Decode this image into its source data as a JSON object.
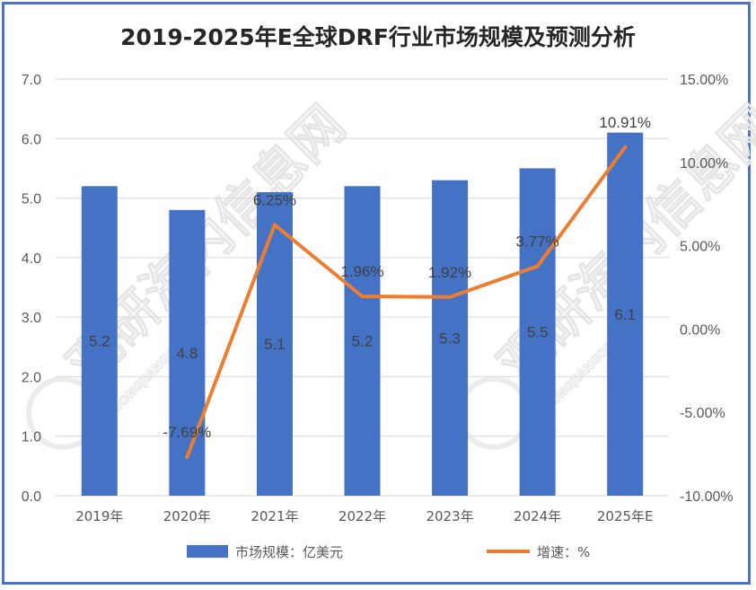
{
  "chart_data": {
    "type": "bar+line",
    "title": "2019-2025年E全球DRF行业市场规模及预测分析",
    "categories": [
      "2019年",
      "2020年",
      "2021年",
      "2022年",
      "2023年",
      "2024年",
      "2025年E"
    ],
    "series": [
      {
        "name": "市场规模：亿美元",
        "type": "bar",
        "axis": "left",
        "values": [
          5.2,
          4.8,
          5.1,
          5.2,
          5.3,
          5.5,
          6.1
        ],
        "labels": [
          "5.2",
          "4.8",
          "5.1",
          "5.2",
          "5.3",
          "5.5",
          "6.1"
        ],
        "color": "#4472c4"
      },
      {
        "name": "增速：%",
        "type": "line",
        "axis": "right",
        "values": [
          null,
          -7.69,
          6.25,
          1.96,
          1.92,
          3.77,
          10.91
        ],
        "labels": [
          null,
          "-7.69%",
          "6.25%",
          "1.96%",
          "1.92%",
          "3.77%",
          "10.91%"
        ],
        "color": "#ed7d31"
      }
    ],
    "y_left": {
      "ylim": [
        0,
        7
      ],
      "ticks": [
        "0.0",
        "1.0",
        "2.0",
        "3.0",
        "4.0",
        "5.0",
        "6.0",
        "7.0"
      ]
    },
    "y_right": {
      "ylim": [
        -10,
        15
      ],
      "ticks": [
        "-10.00%",
        "-5.00%",
        "0.00%",
        "5.00%",
        "10.00%",
        "15.00%"
      ]
    },
    "grid": true,
    "legend": "bottom"
  },
  "watermark": {
    "text": "观研海内信息网",
    "sub": "DONGJIANGQB.COM"
  }
}
